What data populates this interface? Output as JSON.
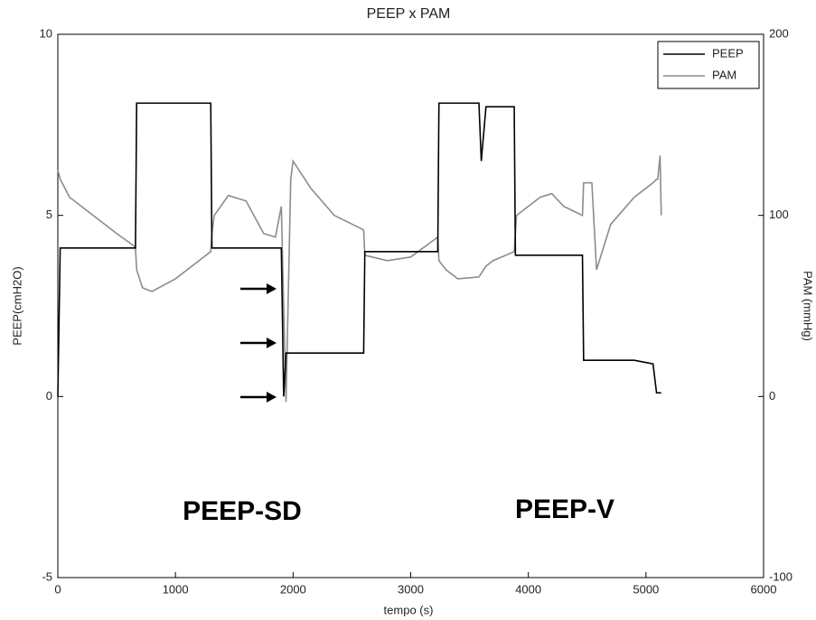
{
  "chart_data": {
    "type": "line",
    "title": "PEEP x PAM",
    "x_label": "tempo (s)",
    "y_label": "PEEP(cmH2O)",
    "y2_label": "PAM (mmHg)",
    "annotations": [
      "PEEP-SD",
      "PEEP-V"
    ],
    "x": [
      0,
      20,
      100,
      300,
      500,
      650,
      660,
      670,
      720,
      800,
      1000,
      1200,
      1300,
      1310,
      1330,
      1450,
      1600,
      1750,
      1850,
      1900,
      1920,
      1940,
      1980,
      2000,
      2150,
      2350,
      2600,
      2610,
      2800,
      3000,
      3230,
      3240,
      3300,
      3400,
      3580,
      3600,
      3640,
      3700,
      3880,
      3890,
      3900,
      4100,
      4200,
      4300,
      4460,
      4470,
      4540,
      4580,
      4700,
      4900,
      5060,
      5090,
      5100,
      5120,
      5130
    ],
    "series": [
      {
        "name": "PEEP",
        "color": "#000000",
        "values": [
          0,
          4.1,
          4.1,
          4.1,
          4.1,
          4.1,
          4.1,
          8.1,
          8.1,
          8.1,
          8.1,
          8.1,
          8.1,
          4.1,
          4.1,
          4.1,
          4.1,
          4.1,
          4.1,
          4.1,
          0,
          1.2,
          1.2,
          1.2,
          1.2,
          1.2,
          1.2,
          4.0,
          4.0,
          4.0,
          4.0,
          8.1,
          8.1,
          8.1,
          8.1,
          6.5,
          8.0,
          8.0,
          8.0,
          3.9,
          3.9,
          3.9,
          3.9,
          3.9,
          3.9,
          1.0,
          1.0,
          1.0,
          1.0,
          1.0,
          0.9,
          0.1,
          0.1,
          0.1,
          0.1
        ]
      },
      {
        "name": "PAM",
        "color": "#8c8c8c",
        "axis": "y2",
        "values": [
          125,
          120,
          110,
          100,
          90,
          83,
          82,
          70,
          60,
          58,
          65,
          75,
          80,
          90,
          100,
          111,
          108,
          90,
          88,
          105,
          50,
          -3,
          120,
          130,
          115,
          100,
          92,
          78,
          75,
          77,
          88,
          75,
          70,
          65,
          66,
          68,
          72,
          75,
          80,
          90,
          100,
          110,
          112,
          105,
          100,
          118,
          118,
          70,
          95,
          110,
          118,
          120,
          120,
          133,
          100
        ]
      }
    ],
    "xlim": [
      0,
      6000
    ],
    "xticks": [
      0,
      1000,
      2000,
      3000,
      4000,
      5000,
      6000
    ],
    "ylim": [
      -5,
      10
    ],
    "yticks": [
      -5,
      0,
      5,
      10
    ],
    "y2lim": [
      -100,
      200
    ],
    "y2ticks": [
      -100,
      0,
      100,
      200
    ],
    "legend": "upper right"
  }
}
